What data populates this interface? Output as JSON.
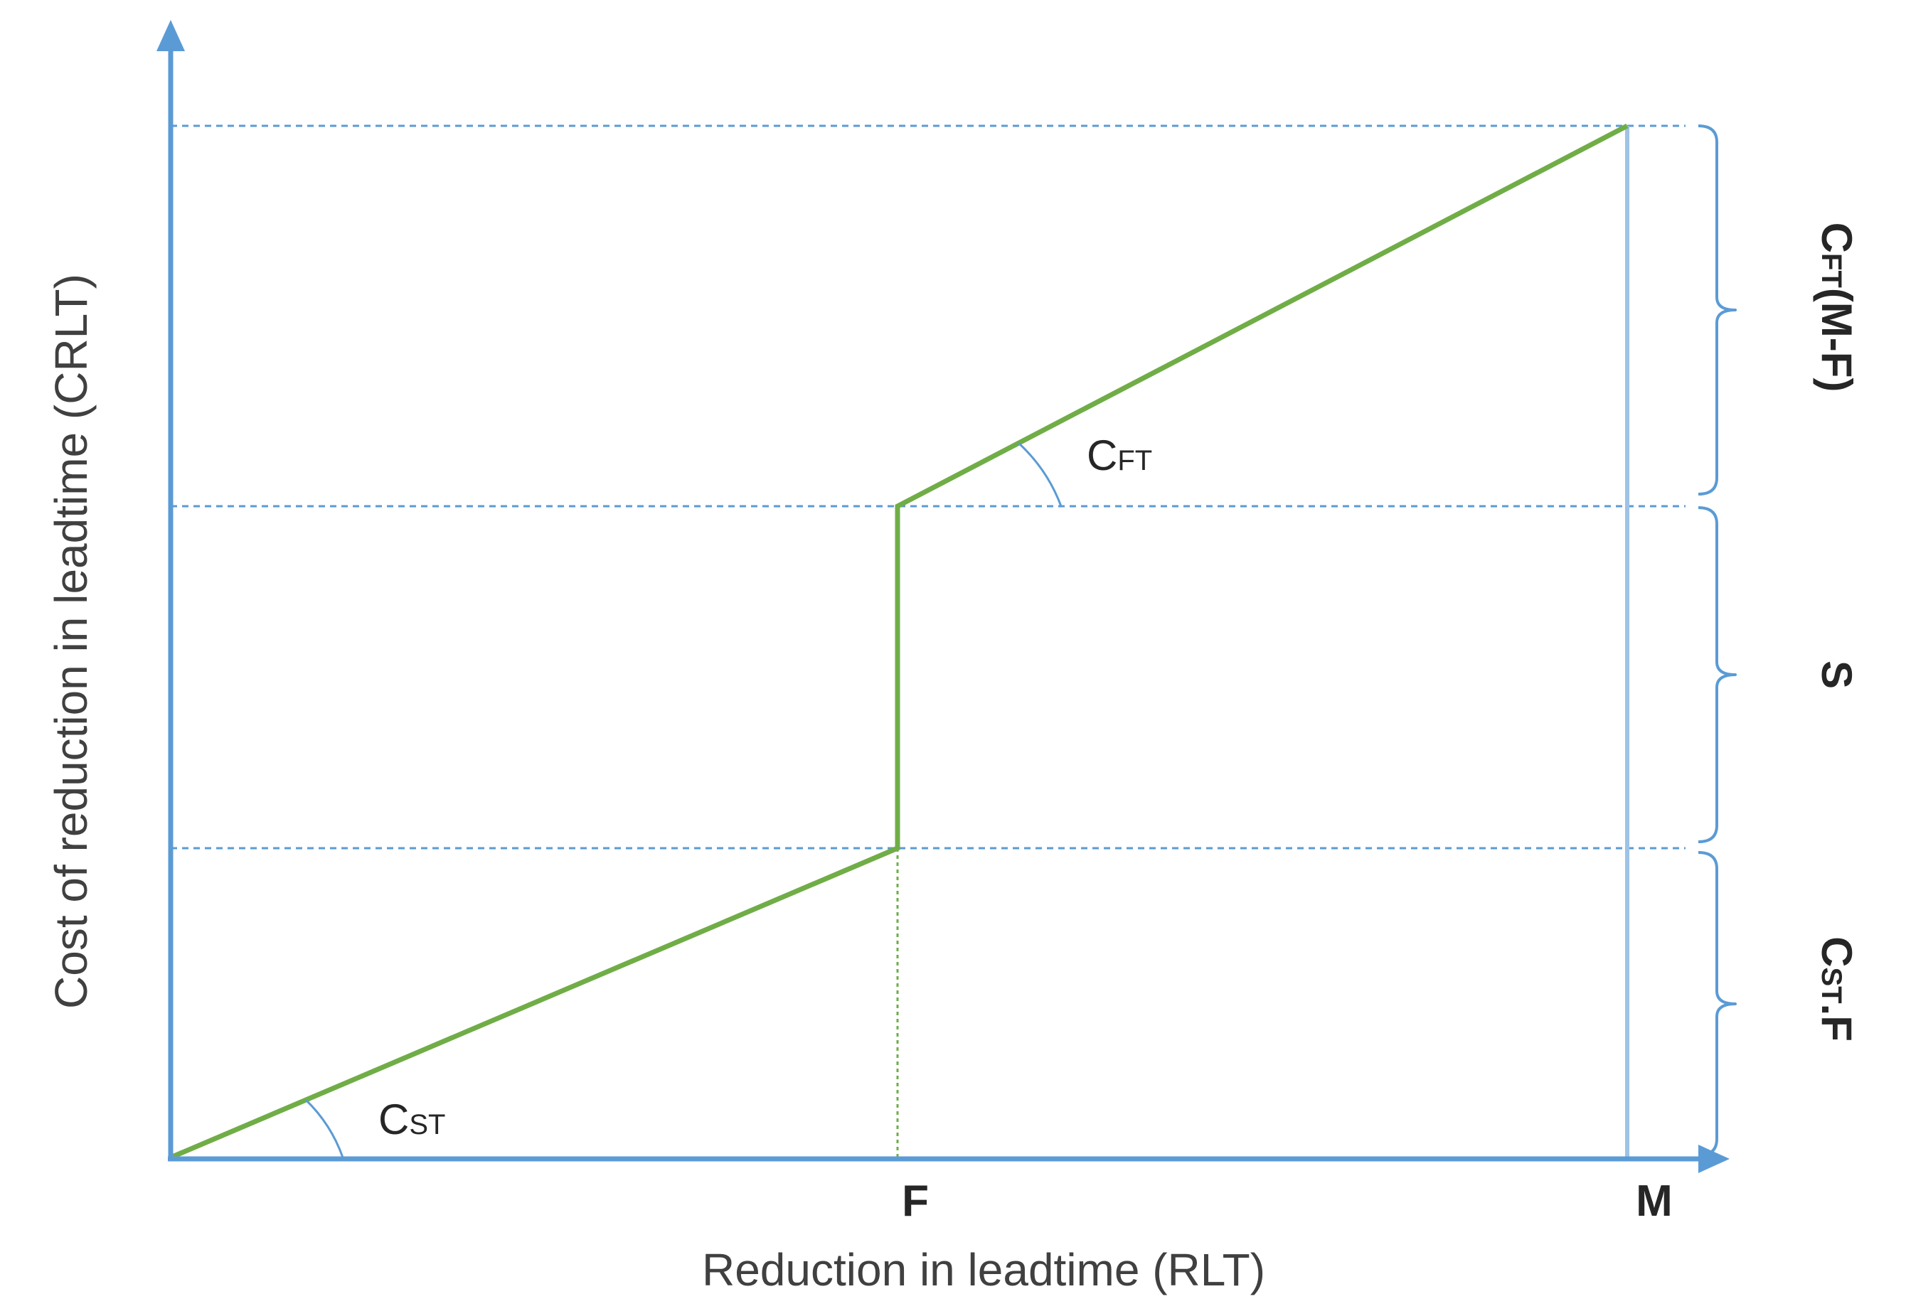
{
  "axes": {
    "x_title": "Reduction in leadtime (RLT)",
    "y_title": "Cost of reduction in leadtime (CRLT)"
  },
  "ticks": {
    "f_label": "F",
    "m_label": "M"
  },
  "slopes": {
    "standard": {
      "main": "C",
      "sub": "ST"
    },
    "fast": {
      "main": "C",
      "sub": "FT"
    }
  },
  "braces": {
    "top": {
      "main": "C",
      "sub": "FT",
      "rest": "(M-F)"
    },
    "middle": {
      "main": "S"
    },
    "bottom": {
      "main": "C",
      "sub": "ST",
      "rest": ".F"
    }
  },
  "colors": {
    "axis": "#5b9bd5",
    "cost_line": "#70ad47",
    "m_line": "#9dc3e6",
    "text": "#262626",
    "axis_title": "#404040"
  }
}
